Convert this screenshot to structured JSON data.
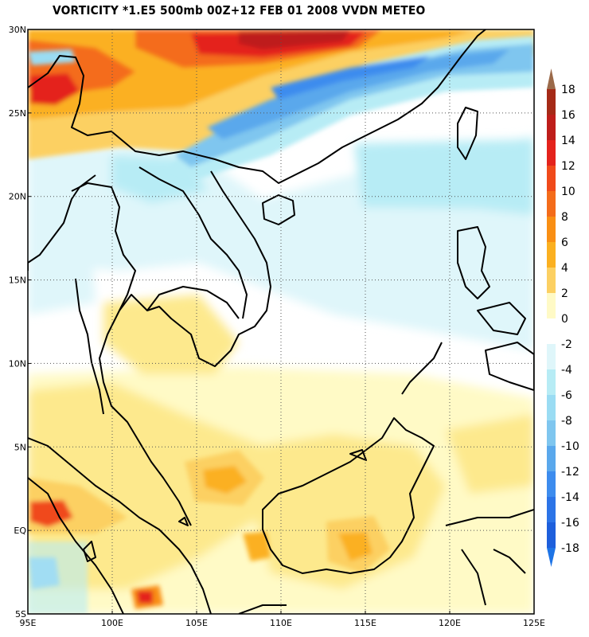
{
  "title": "VORTICITY *1.E5 500mb 00Z+12 FEB 01 2008 VVDN METEO",
  "map": {
    "lon_range": [
      95,
      125
    ],
    "lat_range": [
      -5,
      30
    ],
    "lon_ticks": [
      {
        "value": 95,
        "label": "95E"
      },
      {
        "value": 100,
        "label": "100E"
      },
      {
        "value": 105,
        "label": "105E"
      },
      {
        "value": 110,
        "label": "110E"
      },
      {
        "value": 115,
        "label": "115E"
      },
      {
        "value": 120,
        "label": "120E"
      },
      {
        "value": 125,
        "label": "125E"
      }
    ],
    "lat_ticks": [
      {
        "value": -5,
        "label": "5S"
      },
      {
        "value": 0,
        "label": "EQ"
      },
      {
        "value": 5,
        "label": "5N"
      },
      {
        "value": 10,
        "label": "10N"
      },
      {
        "value": 15,
        "label": "15N"
      },
      {
        "value": 20,
        "label": "20N"
      },
      {
        "value": 25,
        "label": "25N"
      },
      {
        "value": 30,
        "label": "30N"
      }
    ],
    "grid": "dotted"
  },
  "colorbar": {
    "levels": [
      {
        "value": 18,
        "label": "18",
        "color": "#a52a17"
      },
      {
        "value": 16,
        "label": "16",
        "color": "#be1e1a"
      },
      {
        "value": 14,
        "label": "14",
        "color": "#e4231c"
      },
      {
        "value": 12,
        "label": "12",
        "color": "#f04a1a"
      },
      {
        "value": 10,
        "label": "10",
        "color": "#f46c1a"
      },
      {
        "value": 8,
        "label": "8",
        "color": "#f98f14"
      },
      {
        "value": 6,
        "label": "6",
        "color": "#fbb020"
      },
      {
        "value": 4,
        "label": "4",
        "color": "#fcd062"
      },
      {
        "value": 2,
        "label": "2",
        "color": "#fde98d"
      },
      {
        "value": 0,
        "label": "0",
        "color": "#fffac6"
      },
      {
        "value": -2,
        "label": "-2",
        "color": "#ffffff"
      },
      {
        "value": -4,
        "label": "-4",
        "color": "#dff6fa"
      },
      {
        "value": -6,
        "label": "-6",
        "color": "#b7ecf5"
      },
      {
        "value": -8,
        "label": "-8",
        "color": "#9adcf3"
      },
      {
        "value": -10,
        "label": "-10",
        "color": "#7fc6ef"
      },
      {
        "value": -12,
        "label": "-12",
        "color": "#5aa8ec"
      },
      {
        "value": -14,
        "label": "-14",
        "color": "#3d8cee"
      },
      {
        "value": -16,
        "label": "-16",
        "color": "#2c74e7"
      },
      {
        "value": -18,
        "label": "-18",
        "color": "#1e5fdc"
      }
    ]
  },
  "colors": {
    "sea_base": "#ffffff",
    "coast": "#000000",
    "top_arrow": "#9b6a4a",
    "bottom_arrow": "#1e74e6"
  }
}
